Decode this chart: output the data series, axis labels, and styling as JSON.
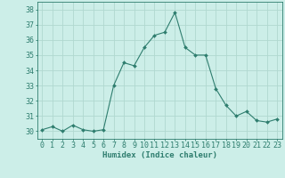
{
  "x": [
    0,
    1,
    2,
    3,
    4,
    5,
    6,
    7,
    8,
    9,
    10,
    11,
    12,
    13,
    14,
    15,
    16,
    17,
    18,
    19,
    20,
    21,
    22,
    23
  ],
  "y": [
    30.1,
    30.3,
    30.0,
    30.4,
    30.1,
    30.0,
    30.1,
    33.0,
    34.5,
    34.3,
    35.5,
    36.3,
    36.5,
    37.8,
    35.5,
    35.0,
    35.0,
    32.8,
    31.7,
    31.0,
    31.3,
    30.7,
    30.6,
    30.8
  ],
  "line_color": "#2e7d6e",
  "marker": "D",
  "marker_size": 2.0,
  "bg_color": "#cceee8",
  "grid_color": "#b0d8d0",
  "xlabel": "Humidex (Indice chaleur)",
  "ylim": [
    29.5,
    38.5
  ],
  "yticks": [
    30,
    31,
    32,
    33,
    34,
    35,
    36,
    37,
    38
  ],
  "xticks": [
    0,
    1,
    2,
    3,
    4,
    5,
    6,
    7,
    8,
    9,
    10,
    11,
    12,
    13,
    14,
    15,
    16,
    17,
    18,
    19,
    20,
    21,
    22,
    23
  ],
  "label_fontsize": 6.5,
  "tick_fontsize": 6.0
}
